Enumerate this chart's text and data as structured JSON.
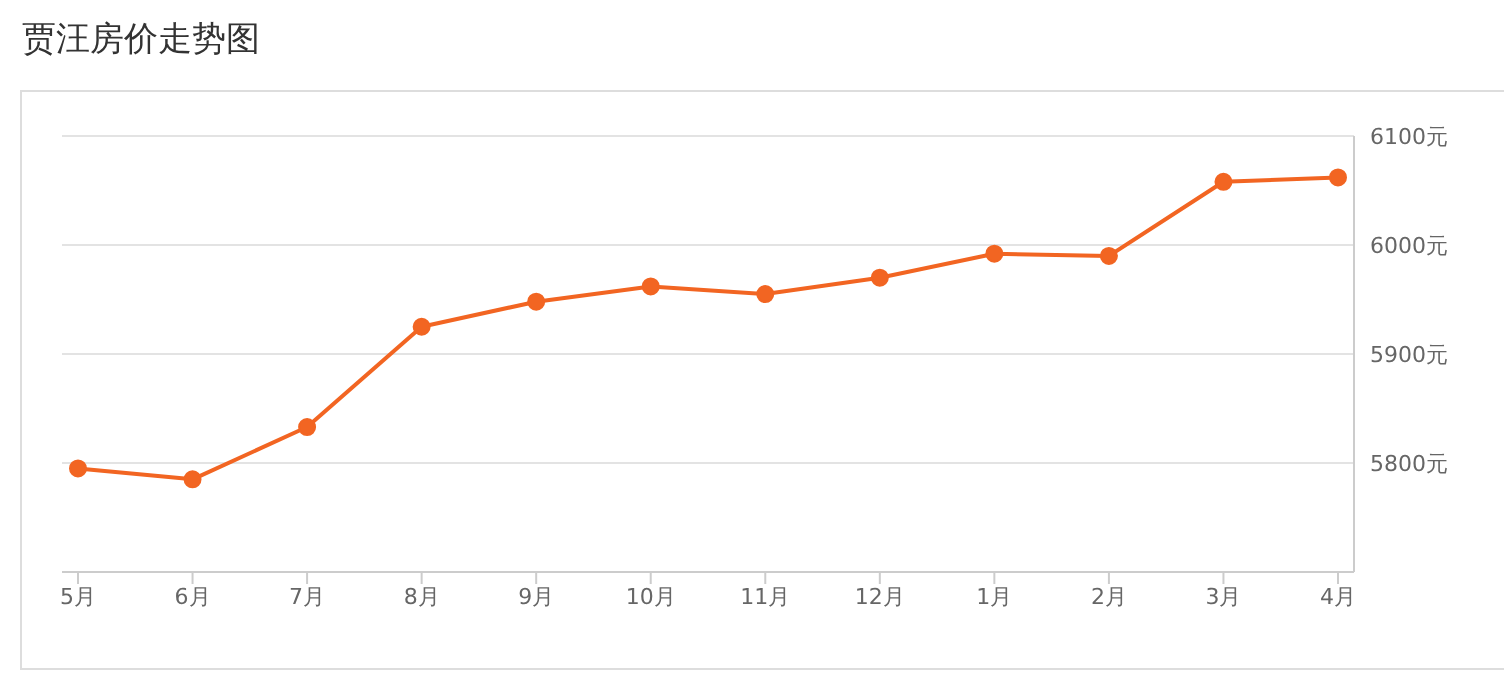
{
  "chart_data": {
    "type": "line",
    "title": "贾汪房价走势图",
    "categories": [
      "5月",
      "6月",
      "7月",
      "8月",
      "9月",
      "10月",
      "11月",
      "12月",
      "1月",
      "2月",
      "3月",
      "4月"
    ],
    "series": [
      {
        "color": "#f26522",
        "values": [
          5795,
          5785,
          5833,
          5925,
          5948,
          5962,
          5955,
          5970,
          5992,
          5990,
          6058,
          6062
        ]
      }
    ],
    "ylim": [
      5700,
      6100
    ],
    "yticks": [
      {
        "value": 5800,
        "label": "5800元"
      },
      {
        "value": 5900,
        "label": "5900元"
      },
      {
        "value": 6000,
        "label": "6000元"
      },
      {
        "value": 6100,
        "label": "6100元"
      }
    ],
    "grid": "y",
    "marker": "circle",
    "line_style": "solid"
  }
}
